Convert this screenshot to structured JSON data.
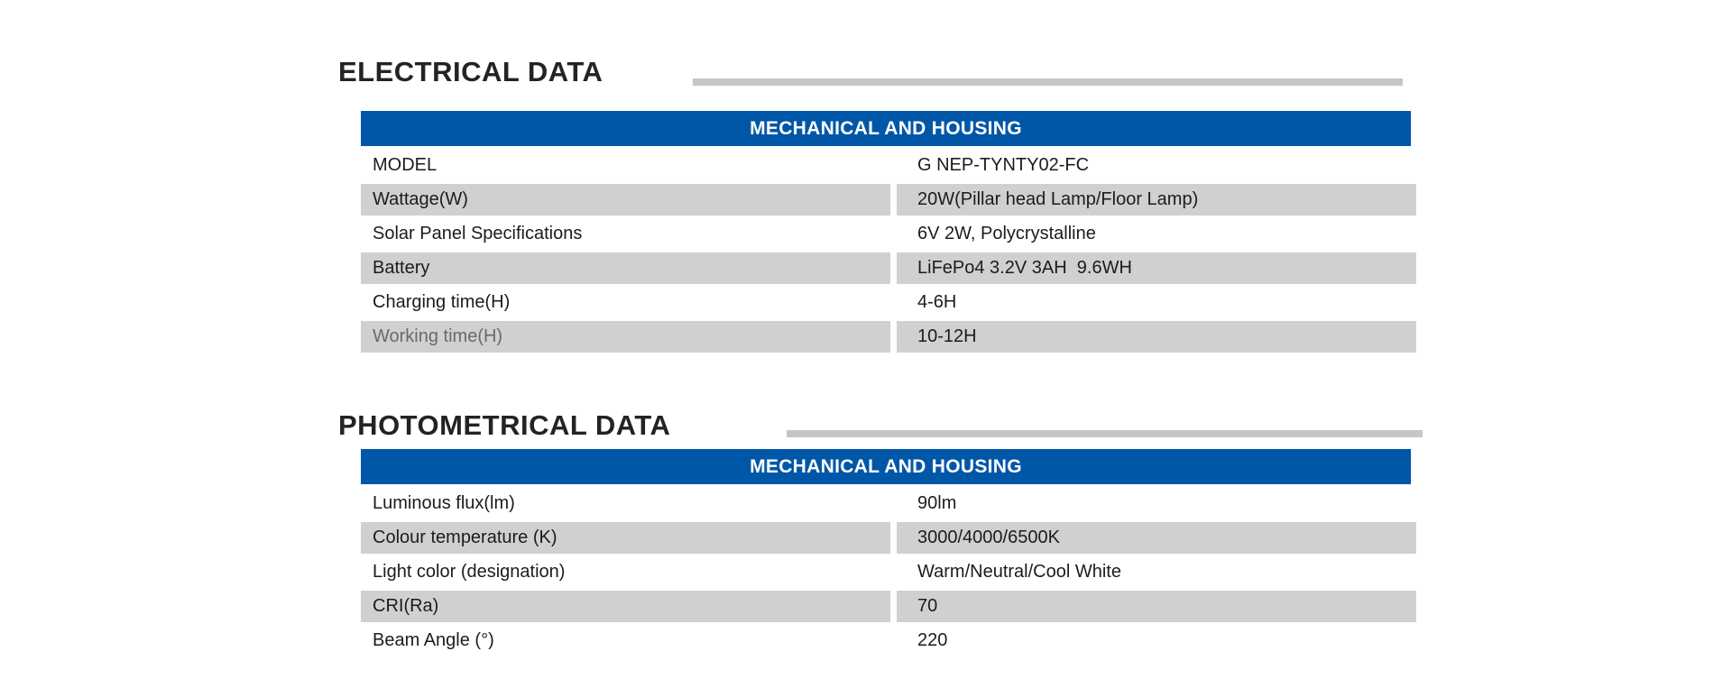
{
  "colors": {
    "accent_blue": "#0057a8",
    "row_gray": "#d0d0d0",
    "divider_gray": "#c6c6c6",
    "text": "#1c1c1c",
    "muted_label": "#6a6a6a",
    "header_text": "#ffffff"
  },
  "sections": [
    {
      "title": "ELECTRICAL DATA",
      "table_header": "MECHANICAL AND HOUSING",
      "rows": [
        {
          "label": "MODEL",
          "value": "G NEP-TYNTY02-FC"
        },
        {
          "label": "Wattage(W)",
          "value": "20W(Pillar head Lamp/Floor Lamp)"
        },
        {
          "label": "Solar Panel Specifications",
          "value": "6V 2W, Polycrystalline"
        },
        {
          "label": "Battery",
          "value": "LiFePo4 3.2V 3AH  9.6WH"
        },
        {
          "label": "Charging time(H)",
          "value": "4-6H"
        },
        {
          "label": "Working time(H)",
          "value": "10-12H"
        }
      ]
    },
    {
      "title": "PHOTOMETRICAL DATA",
      "table_header": "MECHANICAL AND HOUSING",
      "rows": [
        {
          "label": "Luminous flux(lm)",
          "value": "90lm"
        },
        {
          "label": "Colour temperature (K)",
          "value": "3000/4000/6500K"
        },
        {
          "label": "Light color (designation)",
          "value": "Warm/Neutral/Cool White"
        },
        {
          "label": "CRI(Ra)",
          "value": "70"
        },
        {
          "label": "Beam Angle (°)",
          "value": "220"
        }
      ]
    }
  ]
}
